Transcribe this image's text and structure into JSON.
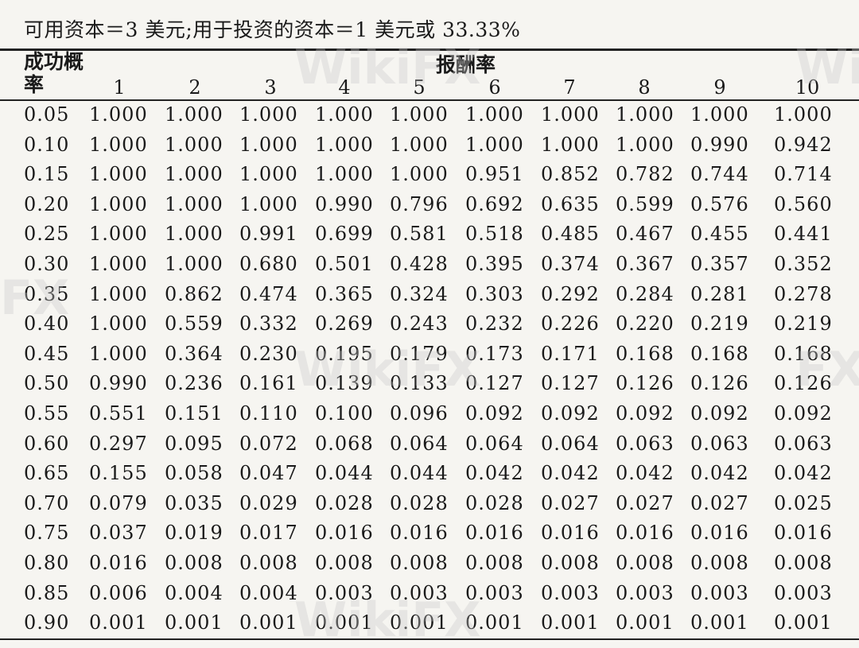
{
  "caption": "可用资本＝3 美元;用于投资的资本＝1 美元或 33.33%",
  "header": {
    "row_label": "成功概率",
    "group_label": "报酬率",
    "columns": [
      "1",
      "2",
      "3",
      "4",
      "5",
      "6",
      "7",
      "8",
      "9",
      "10"
    ]
  },
  "rows": [
    {
      "p": "0.05",
      "v": [
        "1.000",
        "1.000",
        "1.000",
        "1.000",
        "1.000",
        "1.000",
        "1.000",
        "1.000",
        "1.000",
        "1.000"
      ]
    },
    {
      "p": "0.10",
      "v": [
        "1.000",
        "1.000",
        "1.000",
        "1.000",
        "1.000",
        "1.000",
        "1.000",
        "1.000",
        "0.990",
        "0.942"
      ]
    },
    {
      "p": "0.15",
      "v": [
        "1.000",
        "1.000",
        "1.000",
        "1.000",
        "1.000",
        "0.951",
        "0.852",
        "0.782",
        "0.744",
        "0.714"
      ]
    },
    {
      "p": "0.20",
      "v": [
        "1.000",
        "1.000",
        "1.000",
        "0.990",
        "0.796",
        "0.692",
        "0.635",
        "0.599",
        "0.576",
        "0.560"
      ]
    },
    {
      "p": "0.25",
      "v": [
        "1.000",
        "1.000",
        "0.991",
        "0.699",
        "0.581",
        "0.518",
        "0.485",
        "0.467",
        "0.455",
        "0.441"
      ]
    },
    {
      "p": "0.30",
      "v": [
        "1.000",
        "1.000",
        "0.680",
        "0.501",
        "0.428",
        "0.395",
        "0.374",
        "0.367",
        "0.357",
        "0.352"
      ]
    },
    {
      "p": "0.35",
      "v": [
        "1.000",
        "0.862",
        "0.474",
        "0.365",
        "0.324",
        "0.303",
        "0.292",
        "0.284",
        "0.281",
        "0.278"
      ]
    },
    {
      "p": "0.40",
      "v": [
        "1.000",
        "0.559",
        "0.332",
        "0.269",
        "0.243",
        "0.232",
        "0.226",
        "0.220",
        "0.219",
        "0.219"
      ]
    },
    {
      "p": "0.45",
      "v": [
        "1.000",
        "0.364",
        "0.230",
        "0.195",
        "0.179",
        "0.173",
        "0.171",
        "0.168",
        "0.168",
        "0.168"
      ]
    },
    {
      "p": "0.50",
      "v": [
        "0.990",
        "0.236",
        "0.161",
        "0.139",
        "0.133",
        "0.127",
        "0.127",
        "0.126",
        "0.126",
        "0.126"
      ]
    },
    {
      "p": "0.55",
      "v": [
        "0.551",
        "0.151",
        "0.110",
        "0.100",
        "0.096",
        "0.092",
        "0.092",
        "0.092",
        "0.092",
        "0.092"
      ]
    },
    {
      "p": "0.60",
      "v": [
        "0.297",
        "0.095",
        "0.072",
        "0.068",
        "0.064",
        "0.064",
        "0.064",
        "0.063",
        "0.063",
        "0.063"
      ]
    },
    {
      "p": "0.65",
      "v": [
        "0.155",
        "0.058",
        "0.047",
        "0.044",
        "0.044",
        "0.042",
        "0.042",
        "0.042",
        "0.042",
        "0.042"
      ]
    },
    {
      "p": "0.70",
      "v": [
        "0.079",
        "0.035",
        "0.029",
        "0.028",
        "0.028",
        "0.028",
        "0.027",
        "0.027",
        "0.027",
        "0.025"
      ]
    },
    {
      "p": "0.75",
      "v": [
        "0.037",
        "0.019",
        "0.017",
        "0.016",
        "0.016",
        "0.016",
        "0.016",
        "0.016",
        "0.016",
        "0.016"
      ]
    },
    {
      "p": "0.80",
      "v": [
        "0.016",
        "0.008",
        "0.008",
        "0.008",
        "0.008",
        "0.008",
        "0.008",
        "0.008",
        "0.008",
        "0.008"
      ]
    },
    {
      "p": "0.85",
      "v": [
        "0.006",
        "0.004",
        "0.004",
        "0.003",
        "0.003",
        "0.003",
        "0.003",
        "0.003",
        "0.003",
        "0.003"
      ]
    },
    {
      "p": "0.90",
      "v": [
        "0.001",
        "0.001",
        "0.001",
        "0.001",
        "0.001",
        "0.001",
        "0.001",
        "0.001",
        "0.001",
        "0.001"
      ]
    }
  ],
  "watermarks": [
    "WikiFX",
    "WikiFX",
    "WikiFX",
    "WikiFX",
    "FX",
    "FX"
  ]
}
